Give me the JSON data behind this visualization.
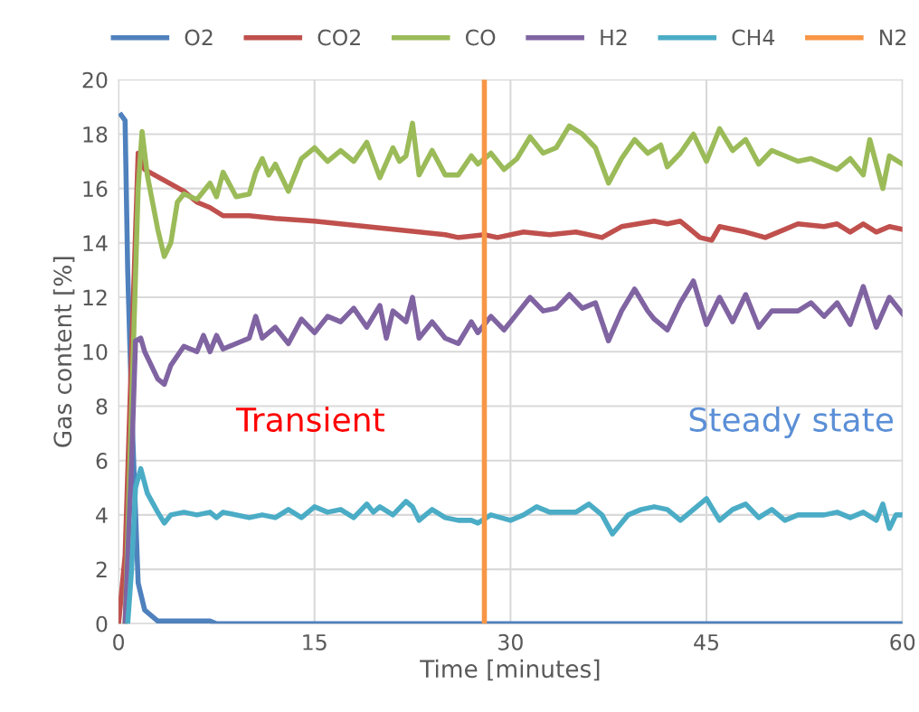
{
  "chart_data": {
    "type": "line",
    "xlabel": "Time [minutes]",
    "ylabel": "Gas content [%]",
    "xlim": [
      0,
      60
    ],
    "xticks": [
      0,
      15,
      30,
      45,
      60
    ],
    "ylim": [
      0,
      20
    ],
    "yticks": [
      0,
      2,
      4,
      6,
      8,
      10,
      12,
      14,
      16,
      18,
      20
    ],
    "grid": true,
    "legend": "top",
    "marker": "none",
    "line_style": "solid",
    "annotations": [
      "Transient",
      "Steady state"
    ],
    "series": [
      {
        "name": "O2",
        "color": "#4f81bd",
        "x": [
          0.2,
          0.5,
          0.7,
          1.0,
          1.5,
          2,
          3,
          7,
          7.5,
          60
        ],
        "values": [
          18.7,
          18.5,
          13.0,
          8.0,
          1.5,
          0.5,
          0.1,
          0.1,
          0,
          0
        ]
      },
      {
        "name": "CO2",
        "color": "#c0504d",
        "x": [
          0,
          0.5,
          1,
          1.5,
          2,
          3.5,
          5,
          6,
          7,
          8,
          10,
          12,
          15,
          17,
          19,
          21,
          23,
          25,
          26,
          28,
          29,
          31,
          33,
          35,
          37,
          38.5,
          41,
          42,
          43,
          44.5,
          45.4,
          46,
          48,
          49.5,
          52,
          54,
          55,
          56,
          57,
          58,
          59,
          60
        ],
        "values": [
          0,
          2.5,
          10,
          17.3,
          16.7,
          16.3,
          15.9,
          15.5,
          15.3,
          15.0,
          15.0,
          14.9,
          14.8,
          14.7,
          14.6,
          14.5,
          14.4,
          14.3,
          14.2,
          14.3,
          14.2,
          14.4,
          14.3,
          14.4,
          14.2,
          14.6,
          14.8,
          14.7,
          14.8,
          14.2,
          14.1,
          14.6,
          14.4,
          14.2,
          14.7,
          14.6,
          14.7,
          14.4,
          14.7,
          14.4,
          14.6,
          14.5
        ]
      },
      {
        "name": "CO",
        "color": "#9bbb59",
        "x": [
          0.5,
          1,
          1.5,
          1.8,
          2.2,
          3,
          3.5,
          4,
          4.5,
          5,
          6,
          7,
          7.5,
          8,
          9,
          10,
          10.5,
          11,
          11.5,
          12,
          13,
          14,
          15,
          16,
          17,
          18,
          19,
          20,
          21,
          21.5,
          22,
          22.5,
          23,
          24,
          25,
          26,
          27,
          27.5,
          28.5,
          29.5,
          30.5,
          31.5,
          32.5,
          33.5,
          34.5,
          35.5,
          36.5,
          37.5,
          38.5,
          39.5,
          40.5,
          41.5,
          42,
          43,
          44,
          45,
          46,
          47,
          48,
          49,
          50,
          51,
          52,
          53,
          54,
          55,
          56,
          57,
          57.5,
          58.5,
          59,
          60
        ],
        "values": [
          0,
          8,
          16,
          18.1,
          16.5,
          14.5,
          13.5,
          14,
          15.5,
          15.8,
          15.6,
          16.2,
          15.7,
          16.6,
          15.7,
          15.8,
          16.6,
          17.1,
          16.5,
          16.9,
          15.9,
          17.1,
          17.5,
          17.0,
          17.4,
          17.0,
          17.7,
          16.4,
          17.5,
          17.0,
          17.2,
          18.4,
          16.5,
          17.4,
          16.5,
          16.5,
          17.2,
          16.9,
          17.3,
          16.7,
          17.1,
          17.9,
          17.3,
          17.5,
          18.3,
          18.0,
          17.5,
          16.2,
          17.1,
          17.8,
          17.3,
          17.6,
          16.8,
          17.3,
          18.0,
          17.0,
          18.2,
          17.4,
          17.8,
          16.9,
          17.4,
          17.2,
          17.0,
          17.1,
          16.9,
          16.7,
          17.1,
          16.5,
          17.8,
          16.0,
          17.2,
          16.9
        ]
      },
      {
        "name": "H2",
        "color": "#8064a2",
        "x": [
          0.5,
          1,
          1.3,
          1.7,
          2,
          3,
          3.5,
          4,
          5,
          6,
          6.5,
          7,
          7.5,
          8,
          9,
          10,
          10.5,
          11,
          12,
          13,
          14,
          15,
          16,
          17,
          18,
          19,
          20,
          20.5,
          21,
          22,
          22.5,
          23,
          24,
          25,
          26,
          27,
          27.5,
          28.5,
          29.5,
          30.5,
          31.5,
          32.5,
          33.5,
          34.5,
          35.5,
          36.5,
          37.5,
          38.5,
          39.5,
          40.5,
          41,
          42,
          43,
          44,
          45,
          46,
          47,
          48,
          49,
          50,
          51,
          52,
          53,
          54,
          55,
          56,
          57,
          58,
          59,
          60
        ],
        "values": [
          0,
          6,
          10.4,
          10.5,
          10.0,
          9.0,
          8.8,
          9.5,
          10.2,
          10.0,
          10.6,
          10.0,
          10.6,
          10.1,
          10.3,
          10.5,
          11.3,
          10.5,
          10.9,
          10.3,
          11.2,
          10.7,
          11.3,
          11.1,
          11.6,
          10.9,
          11.7,
          10.5,
          11.5,
          11.1,
          12.0,
          10.5,
          11.1,
          10.5,
          10.3,
          11.1,
          10.7,
          11.3,
          10.8,
          11.4,
          12.0,
          11.5,
          11.6,
          12.1,
          11.6,
          11.8,
          10.4,
          11.5,
          12.3,
          11.5,
          11.2,
          10.8,
          11.8,
          12.6,
          11.0,
          12.0,
          11.1,
          12.1,
          10.9,
          11.5,
          11.5,
          11.5,
          11.8,
          11.3,
          11.8,
          11.0,
          12.4,
          10.9,
          12.0,
          11.4
        ]
      },
      {
        "name": "CH4",
        "color": "#4bacc6",
        "x": [
          0.7,
          1,
          1.3,
          1.7,
          2.2,
          3,
          3.5,
          4,
          5,
          6,
          7,
          7.5,
          8,
          10,
          11,
          12,
          13,
          14,
          15,
          16,
          17,
          18,
          19,
          19.5,
          20,
          21,
          22,
          22.5,
          23,
          24,
          25,
          26,
          27,
          27.5,
          28.5,
          30,
          31,
          32,
          33,
          35,
          36,
          37,
          37.8,
          39,
          40,
          41,
          42,
          43,
          44,
          45,
          46,
          47,
          48,
          49,
          50,
          51,
          52,
          54,
          55,
          56,
          57,
          58,
          58.5,
          59,
          59.5,
          60
        ],
        "values": [
          0,
          2,
          5,
          5.7,
          4.8,
          4.1,
          3.7,
          4.0,
          4.1,
          4.0,
          4.1,
          3.9,
          4.1,
          3.9,
          4.0,
          3.9,
          4.2,
          3.9,
          4.3,
          4.1,
          4.2,
          3.9,
          4.4,
          4.1,
          4.3,
          4.0,
          4.5,
          4.3,
          3.8,
          4.2,
          3.9,
          3.8,
          3.8,
          3.7,
          4.0,
          3.8,
          4.0,
          4.3,
          4.1,
          4.1,
          4.4,
          4.0,
          3.3,
          4.0,
          4.2,
          4.3,
          4.2,
          3.8,
          4.2,
          4.6,
          3.8,
          4.2,
          4.4,
          3.9,
          4.2,
          3.8,
          4.0,
          4.0,
          4.1,
          3.9,
          4.1,
          3.8,
          4.4,
          3.5,
          4.0,
          4.0
        ]
      },
      {
        "name": "N2",
        "color": "#f79646",
        "x": [
          28,
          28
        ],
        "values": [
          0,
          20
        ]
      }
    ]
  }
}
